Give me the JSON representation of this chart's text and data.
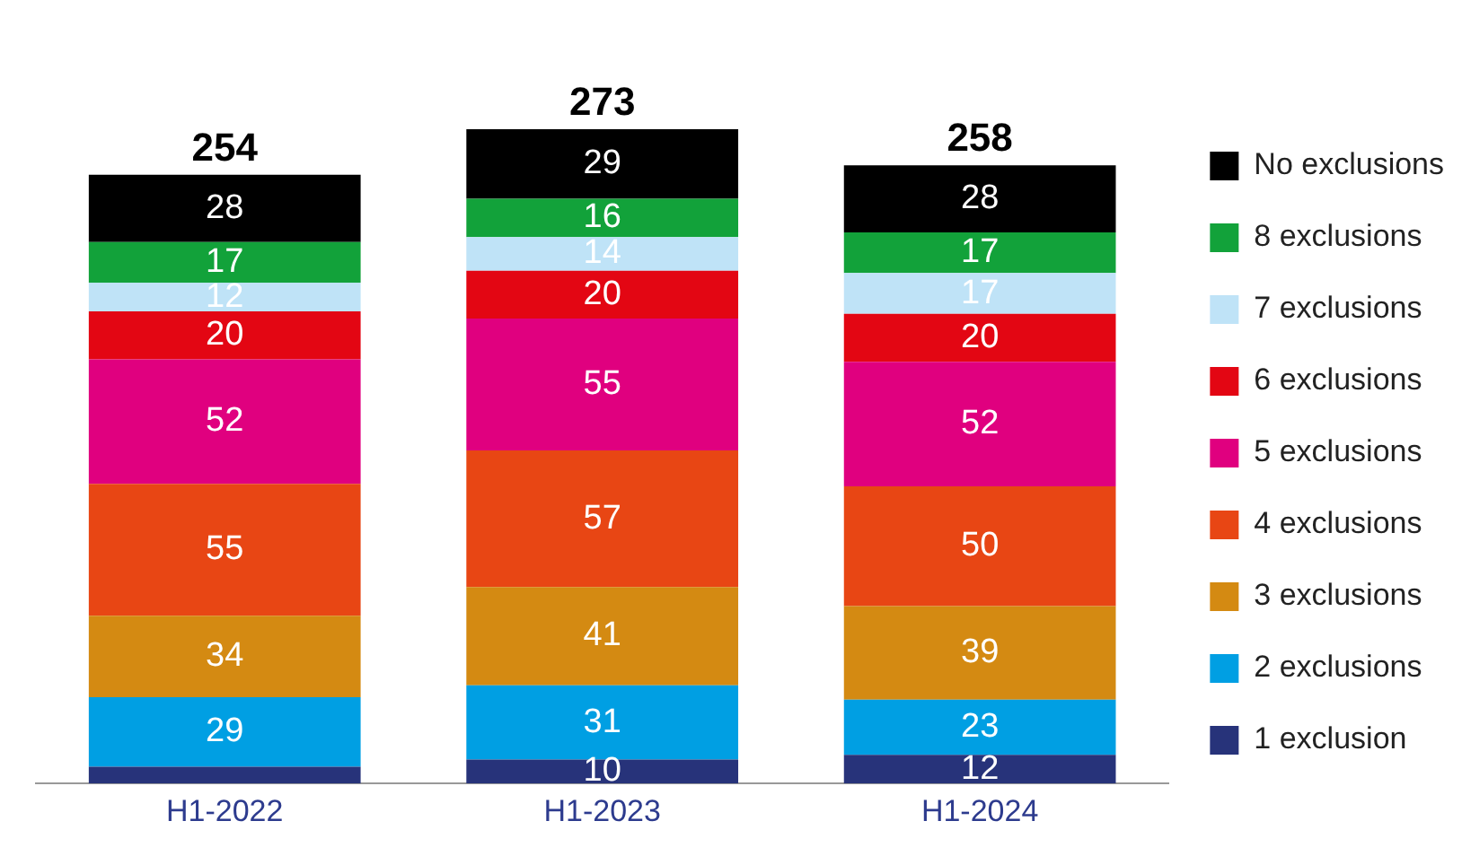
{
  "chart_data": {
    "type": "bar",
    "stacked": true,
    "legend": "right",
    "categories": [
      "H1-2022",
      "H1-2023",
      "H1-2024"
    ],
    "series": [
      {
        "name": "1 exclusion",
        "color": "#27337a",
        "values": [
          7,
          10,
          12
        ],
        "value_labels": [
          null,
          "10",
          "12"
        ]
      },
      {
        "name": "2 exclusions",
        "color": "#009fe3",
        "values": [
          29,
          31,
          23
        ],
        "value_labels": [
          "29",
          "31",
          "23"
        ]
      },
      {
        "name": "3 exclusions",
        "color": "#d48a12",
        "values": [
          34,
          41,
          39
        ],
        "value_labels": [
          "34",
          "41",
          "39"
        ]
      },
      {
        "name": "4 exclusions",
        "color": "#e84614",
        "values": [
          55,
          57,
          50
        ],
        "value_labels": [
          "55",
          "57",
          "50"
        ]
      },
      {
        "name": "5 exclusions",
        "color": "#e0007f",
        "values": [
          52,
          55,
          52
        ],
        "value_labels": [
          "52",
          "55",
          "52"
        ]
      },
      {
        "name": "6 exclusions",
        "color": "#e30613",
        "values": [
          20,
          20,
          20
        ],
        "value_labels": [
          "20",
          "20",
          "20"
        ]
      },
      {
        "name": "7 exclusions",
        "color": "#bfe3f7",
        "values": [
          12,
          14,
          17
        ],
        "value_labels": [
          "12",
          "14",
          "17"
        ]
      },
      {
        "name": "8 exclusions",
        "color": "#12a23a",
        "values": [
          17,
          16,
          17
        ],
        "value_labels": [
          "17",
          "16",
          "17"
        ]
      },
      {
        "name": "No exclusions",
        "color": "#000000",
        "values": [
          28,
          29,
          28
        ],
        "value_labels": [
          "28",
          "29",
          "28"
        ]
      }
    ],
    "totals": [
      "254",
      "273",
      "258"
    ]
  }
}
